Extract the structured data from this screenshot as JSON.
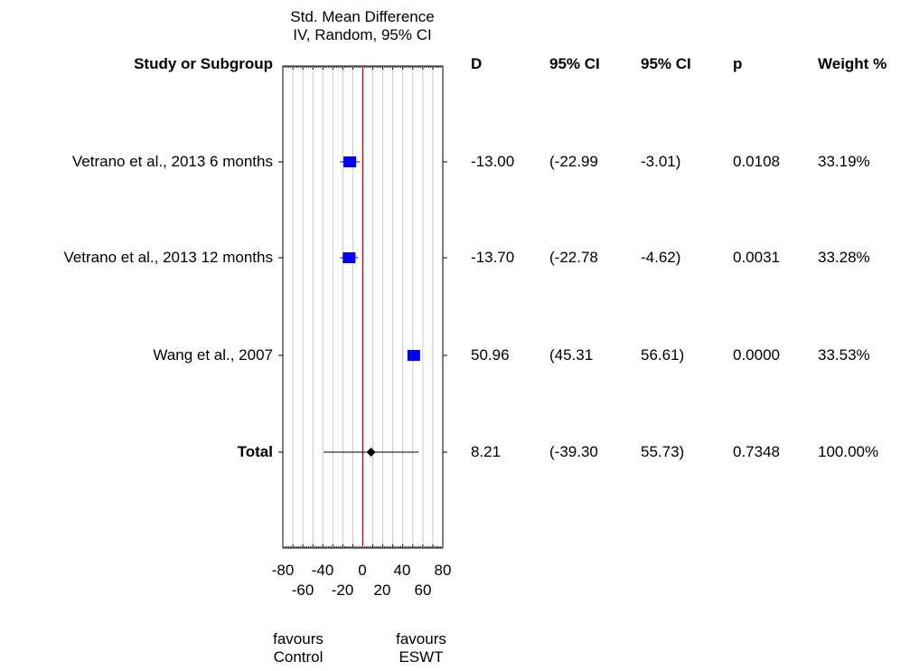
{
  "chart_data": {
    "type": "forest",
    "title": [
      "Std. Mean Difference",
      "IV, Random, 95% CI"
    ],
    "columns": {
      "study": "Study or Subgroup",
      "d": "D",
      "ci_low": "95% CI",
      "ci_high": "95% CI",
      "p": "p",
      "weight": "Weight %"
    },
    "xlim": [
      -80,
      80
    ],
    "xticks_top": [
      "-80",
      "-40",
      "0",
      "40",
      "80"
    ],
    "xticks_bottom": [
      "-60",
      "-20",
      "20",
      "60"
    ],
    "xticks_top_values": [
      -80,
      -40,
      0,
      40,
      80
    ],
    "xticks_bottom_values": [
      -60,
      -20,
      20,
      60
    ],
    "grid": true,
    "reference_line": 0,
    "rows": [
      {
        "study": "Vetrano et al., 2013 6 months",
        "d": -13.0,
        "lo": -22.99,
        "hi": -3.01,
        "d_label": "-13.00",
        "lo_label": "(-22.99",
        "hi_label": "-3.01)",
        "p": "0.0108",
        "weight": "33.19%",
        "total": false
      },
      {
        "study": "Vetrano et al., 2013 12 months",
        "d": -13.7,
        "lo": -22.78,
        "hi": -4.62,
        "d_label": "-13.70",
        "lo_label": "(-22.78",
        "hi_label": "-4.62)",
        "p": "0.0031",
        "weight": "33.28%",
        "total": false
      },
      {
        "study": "Wang et al., 2007",
        "d": 50.96,
        "lo": 45.31,
        "hi": 56.61,
        "d_label": "50.96",
        "lo_label": "(45.31",
        "hi_label": "56.61)",
        "p": "0.0000",
        "weight": "33.53%",
        "total": false
      },
      {
        "study": "Total",
        "d": 8.21,
        "lo": -39.3,
        "hi": 55.73,
        "d_label": "8.21",
        "lo_label": "(-39.30",
        "hi_label": "55.73)",
        "p": "0.7348",
        "weight": "100.00%",
        "total": true
      }
    ],
    "favours_left": [
      "favours",
      "Control"
    ],
    "favours_right": [
      "favours",
      "ESWT"
    ],
    "colors": {
      "marker": "#0000ff",
      "reference": "#c00000",
      "grid": "#c8c8c8",
      "total": "#000000"
    }
  }
}
